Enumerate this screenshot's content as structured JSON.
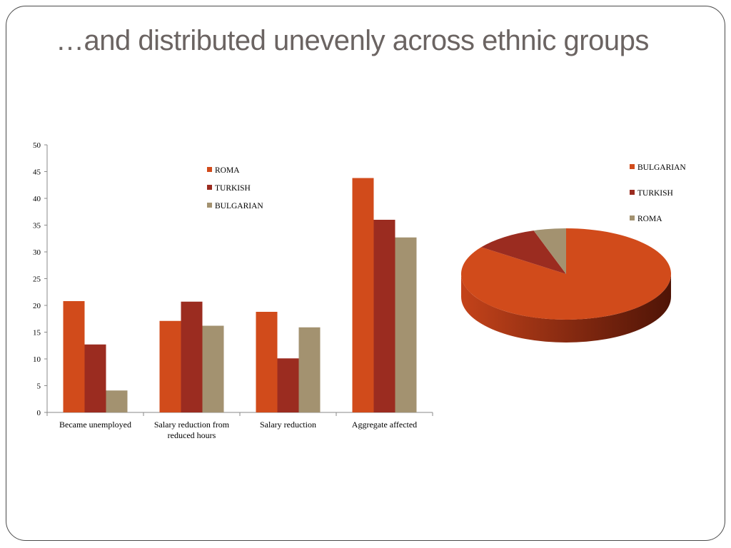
{
  "slide": {
    "title": "…and distributed unevenly across ethnic groups"
  },
  "chart_data": [
    {
      "type": "bar",
      "title": "",
      "xlabel": "",
      "ylabel": "",
      "ylim": [
        0,
        50
      ],
      "yticks": [
        0,
        5,
        10,
        15,
        20,
        25,
        30,
        35,
        40,
        45,
        50
      ],
      "grid": false,
      "legend_position": "top-center",
      "categories": [
        "Became unemployed",
        "Salary reduction from reduced hours",
        "Salary reduction",
        "Aggregate affected"
      ],
      "series": [
        {
          "name": "ROMA",
          "color": "#d14b1b",
          "values": [
            20.8,
            17.1,
            18.8,
            43.8
          ]
        },
        {
          "name": "TURKISH",
          "color": "#9b2c20",
          "values": [
            12.7,
            20.7,
            10.1,
            36.0
          ]
        },
        {
          "name": "BULGARIAN",
          "color": "#a39270",
          "values": [
            4.1,
            16.2,
            15.9,
            32.7
          ]
        }
      ]
    },
    {
      "type": "pie",
      "title": "",
      "style": "3d",
      "legend_position": "right",
      "slices": [
        {
          "name": "BULGARIAN",
          "color": "#d14b1b",
          "value": 85
        },
        {
          "name": "TURKISH",
          "color": "#9b2c20",
          "value": 10
        },
        {
          "name": "ROMA",
          "color": "#a39270",
          "value": 5
        }
      ]
    }
  ]
}
